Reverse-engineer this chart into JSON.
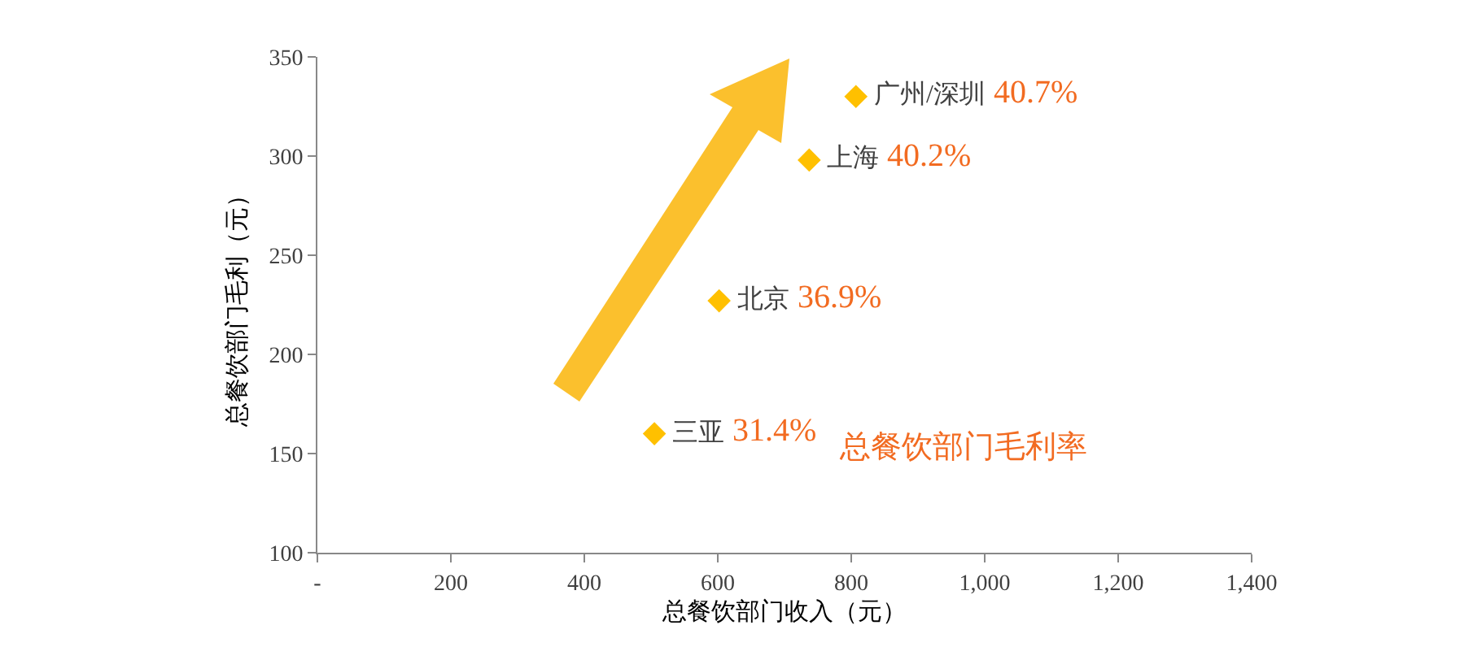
{
  "chart_data": {
    "type": "scatter",
    "xlabel": "总餐饮部门收入（元）",
    "ylabel": "总餐饮部门毛利（元）",
    "xlim": [
      0,
      1400
    ],
    "ylim": [
      100,
      350
    ],
    "xticks": [
      {
        "value": 0,
        "label": "-"
      },
      200,
      400,
      600,
      800,
      {
        "value": 1000,
        "label": "1,000"
      },
      {
        "value": 1200,
        "label": "1,200"
      },
      {
        "value": 1400,
        "label": "1,400"
      }
    ],
    "yticks": [
      100,
      150,
      200,
      250,
      300,
      350
    ],
    "marker": "diamond",
    "grid": false,
    "series": [
      {
        "color": "#ffc000",
        "x": [
          505,
          602,
          737,
          807
        ],
        "values": [
          160,
          227,
          298,
          330
        ]
      }
    ],
    "annotations": [
      {
        "text": "三亚 31.4%",
        "x": 505,
        "y": 160
      },
      {
        "text": "北京 36.9%",
        "x": 602,
        "y": 227
      },
      {
        "text": "上海 40.2%",
        "x": 737,
        "y": 298
      },
      {
        "text": "广州/深圳 40.7%",
        "x": 807,
        "y": 330
      },
      "总餐饮部门毛利率"
    ]
  }
}
